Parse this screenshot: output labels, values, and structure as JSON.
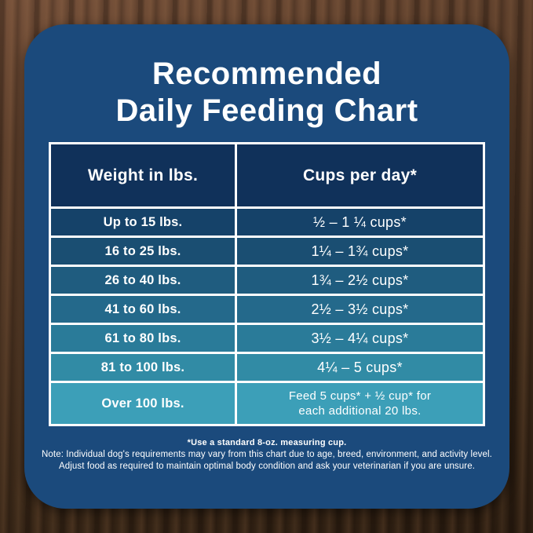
{
  "title": {
    "line1": "Recommended",
    "line2": "Daily Feeding Chart"
  },
  "table": {
    "header_bg": "#10315a",
    "headers": [
      "Weight in lbs.",
      "Cups per day*"
    ],
    "rows": [
      {
        "weight": "Up to 15 lbs.",
        "cups": "½ – 1 ¼ cups*",
        "bg": "#154269"
      },
      {
        "weight": "16 to 25 lbs.",
        "cups": "1¼ – 1¾  cups*",
        "bg": "#1a4e72"
      },
      {
        "weight": "26 to 40 lbs.",
        "cups": "1¾ – 2½ cups*",
        "bg": "#1f5c7f"
      },
      {
        "weight": "41 to 60 lbs.",
        "cups": "2½ – 3½ cups*",
        "bg": "#24698b"
      },
      {
        "weight": "61 to 80 lbs.",
        "cups": "3½ – 4¼ cups*",
        "bg": "#2a7b99"
      },
      {
        "weight": "81 to 100 lbs.",
        "cups": "4¼ – 5 cups*",
        "bg": "#318ba5"
      },
      {
        "weight": "Over 100 lbs.",
        "cups": "Feed 5 cups*  + ½ cup* for",
        "cups2": "each  additional 20 lbs.",
        "bg": "#3c9fb8"
      }
    ]
  },
  "notes": {
    "line1": "*Use a standard 8-oz. measuring cup.",
    "line2": "Note: Individual dog's requirements may vary from this chart due to age, breed, environment, and activity level.",
    "line3": "Adjust food as required to maintain optimal body condition and ask your veterinarian if you are unsure."
  },
  "colors": {
    "panel_bg": "#1b4a7c",
    "cell_border": "#ffffff",
    "text": "#ffffff",
    "wood_brown": "#4b3423"
  },
  "chart_data": {
    "type": "table",
    "title": "Recommended Daily Feeding Chart",
    "columns": [
      "Weight in lbs.",
      "Cups per day*"
    ],
    "rows": [
      [
        "Up to 15 lbs.",
        "½ – 1¼ cups*"
      ],
      [
        "16 to 25 lbs.",
        "1¼ – 1¾ cups*"
      ],
      [
        "26 to 40 lbs.",
        "1¾ – 2½ cups*"
      ],
      [
        "41 to 60 lbs.",
        "2½ – 3½ cups*"
      ],
      [
        "61 to 80 lbs.",
        "3½ – 4¼ cups*"
      ],
      [
        "81 to 100 lbs.",
        "4¼ – 5 cups*"
      ],
      [
        "Over 100 lbs.",
        "Feed 5 cups* + ½ cup* for each additional 20 lbs."
      ]
    ],
    "footnote": "*Use a standard 8-oz. measuring cup."
  }
}
